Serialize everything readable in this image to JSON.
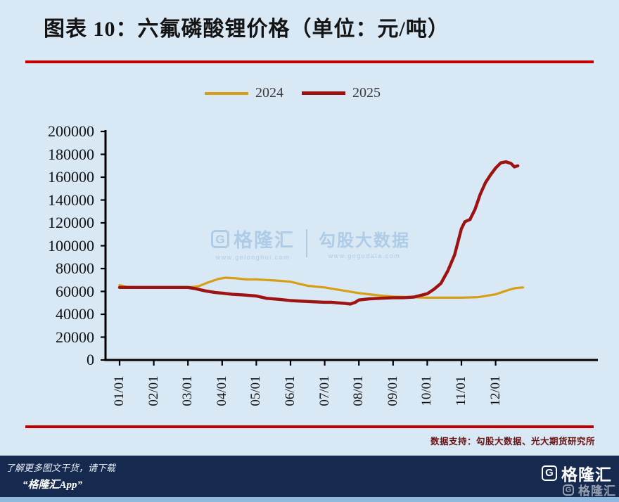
{
  "title": "图表 10：六氟磷酸锂价格（单位：元/吨）",
  "rule_color": "#c00000",
  "legend": [
    {
      "label": "2024",
      "color": "#d7a014"
    },
    {
      "label": "2025",
      "color": "#9e1212"
    }
  ],
  "brand": {
    "g": "G",
    "name": "格隆汇"
  },
  "watermark": {
    "brand_url": "www.gelonghui.com",
    "partner": "勾股大数据",
    "partner_url": "www.gogudata.com"
  },
  "source_note": "数据支持：勾股大数据、光大期货研究所",
  "footer": {
    "line1": "了解更多图文干货，请下载",
    "line2": "“格隆汇App”"
  },
  "chart_data": {
    "type": "line",
    "title": "六氟磷酸锂价格（单位：元/吨）",
    "x_unit": "month_index_from_01/01 (0 = 01/01, 11 = 12/01)",
    "x_tick_labels": [
      "01/01",
      "02/01",
      "03/01",
      "04/01",
      "05/01",
      "06/01",
      "07/01",
      "08/01",
      "09/01",
      "10/01",
      "11/01",
      "12/01"
    ],
    "ylim": [
      0,
      200000
    ],
    "y_ticks": [
      0,
      20000,
      40000,
      60000,
      80000,
      100000,
      120000,
      140000,
      160000,
      180000,
      200000
    ],
    "grid": false,
    "legend_position": "top-center",
    "series": [
      {
        "name": "2024",
        "color": "#d7a014",
        "line_width": 3.2,
        "x": [
          0,
          0.2,
          0.5,
          1,
          1.5,
          2,
          2.3,
          2.6,
          2.9,
          3.1,
          3.4,
          3.7,
          4,
          4.3,
          4.6,
          5,
          5.2,
          5.5,
          5.8,
          6,
          6.3,
          6.6,
          7,
          7.3,
          7.6,
          8,
          8.5,
          9,
          9.5,
          10,
          10.5,
          11,
          11.2,
          11.4,
          11.6,
          11.8
        ],
        "values": [
          65500,
          64000,
          63500,
          63500,
          63500,
          63500,
          64500,
          68000,
          71000,
          72000,
          71500,
          70500,
          70500,
          70000,
          69500,
          68500,
          67000,
          65000,
          64000,
          63500,
          62000,
          60500,
          58500,
          57500,
          56500,
          55500,
          55000,
          54500,
          54500,
          54500,
          55000,
          57500,
          59500,
          61500,
          63000,
          63500
        ]
      },
      {
        "name": "2025",
        "color": "#9e1212",
        "line_width": 4.4,
        "x": [
          0,
          0.5,
          1,
          1.5,
          2,
          2.2,
          2.5,
          2.8,
          3,
          3.3,
          3.6,
          4,
          4.3,
          4.7,
          5,
          5.3,
          5.6,
          6,
          6.2,
          6.4,
          6.6,
          6.75,
          6.9,
          7,
          7.3,
          7.6,
          8,
          8.3,
          8.6,
          9,
          9.2,
          9.4,
          9.6,
          9.8,
          10,
          10.1,
          10.25,
          10.4,
          10.55,
          10.7,
          10.85,
          11,
          11.15,
          11.3,
          11.45,
          11.55,
          11.65
        ],
        "values": [
          63500,
          63500,
          63500,
          63500,
          63500,
          62500,
          60500,
          59000,
          58500,
          57500,
          57000,
          56000,
          54000,
          53000,
          52000,
          51500,
          51000,
          50500,
          50500,
          50000,
          49500,
          49000,
          50500,
          52500,
          53500,
          54000,
          54500,
          54500,
          55000,
          58000,
          62000,
          67000,
          78000,
          92000,
          115000,
          121000,
          123000,
          132000,
          145000,
          155000,
          162000,
          168000,
          172500,
          173500,
          172000,
          169000,
          170000
        ]
      }
    ]
  }
}
